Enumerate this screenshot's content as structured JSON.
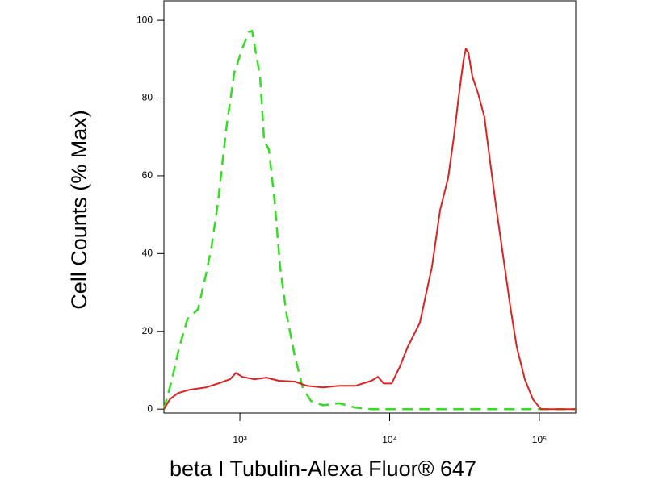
{
  "chart_data": {
    "type": "line",
    "x_label": "beta I Tubulin-Alexa Fluor® 647",
    "y_label": "Cell Counts (% Max)",
    "x_scale": "log",
    "xlim": [
      311,
      175000
    ],
    "xticks": [
      {
        "value": 1000,
        "label": "10³"
      },
      {
        "value": 10000,
        "label": "10⁴"
      },
      {
        "value": 100000,
        "label": "10⁵"
      }
    ],
    "ylim": [
      -1,
      105
    ],
    "yticks": [
      0,
      20,
      40,
      60,
      80,
      100
    ],
    "series": [
      {
        "color": "#33dd22",
        "style": "dashed",
        "x": [
          311,
          352,
          394,
          447,
          525,
          594,
          648,
          715,
          810,
          917,
          1037,
          1146,
          1205,
          1250,
          1364,
          1452,
          1563,
          1706,
          1861,
          2055,
          2326,
          2632,
          2981,
          3591,
          4603,
          5902,
          7566,
          9700,
          12420,
          175000
        ],
        "values": [
          0,
          7.7,
          16,
          23.2,
          25.7,
          34.6,
          41.9,
          53.3,
          72,
          86.5,
          92.7,
          96.9,
          97.3,
          93.8,
          85.5,
          68.9,
          66.8,
          53.3,
          36.1,
          24.1,
          13.7,
          5.4,
          2.1,
          1,
          1.5,
          0.4,
          0,
          0,
          0,
          0
        ]
      },
      {
        "color": "#dd2222",
        "style": "solid",
        "x": [
          311,
          340,
          385,
          463,
          594,
          715,
          861,
          940,
          1037,
          1250,
          1506,
          1815,
          2326,
          2801,
          3591,
          4603,
          5902,
          7566,
          8356,
          9120,
          10310,
          11670,
          13210,
          15920,
          19190,
          21730,
          24600,
          26850,
          28910,
          31130,
          32300,
          33560,
          35720,
          38900,
          42960,
          46880,
          51760,
          58610,
          63970,
          70630,
          79980,
          90570,
          102500,
          116100,
          175000
        ],
        "values": [
          0,
          2.5,
          4.1,
          5,
          5.6,
          6.6,
          7.7,
          9.3,
          8.3,
          7.7,
          8.1,
          7.3,
          7.1,
          6,
          5.6,
          6,
          6,
          7.3,
          8.3,
          6.6,
          6.6,
          10.8,
          16,
          22.2,
          36.7,
          51.2,
          59.5,
          69.9,
          80.3,
          89.6,
          92.7,
          91.7,
          85.5,
          81.3,
          75.1,
          63.7,
          51.2,
          36.7,
          26.3,
          16,
          7.7,
          2.5,
          0,
          0,
          0
        ]
      }
    ]
  }
}
